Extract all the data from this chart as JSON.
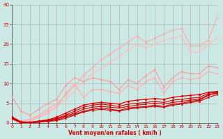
{
  "background_color": "#cce8e4",
  "grid_color": "#aaaaaa",
  "xlabel": "Vent moyen/en rafales ( km/h )",
  "xlabel_color": "#cc0000",
  "tick_color": "#cc0000",
  "xlim": [
    0,
    23
  ],
  "ylim": [
    0,
    30
  ],
  "yticks": [
    0,
    5,
    10,
    15,
    20,
    25,
    30
  ],
  "xticks": [
    0,
    1,
    2,
    3,
    4,
    5,
    6,
    7,
    8,
    9,
    10,
    11,
    12,
    13,
    14,
    15,
    16,
    17,
    18,
    19,
    20,
    21,
    22,
    23
  ],
  "series": [
    {
      "x": [
        0,
        1,
        2,
        3,
        4,
        5,
        6,
        7,
        8,
        9,
        10,
        11,
        12,
        13,
        14,
        15,
        16,
        17,
        18,
        19,
        20,
        21,
        22,
        23
      ],
      "y": [
        1.5,
        0.5,
        1.0,
        2.0,
        3.5,
        5.0,
        7.0,
        9.5,
        12.0,
        14.0,
        16.0,
        17.5,
        19.0,
        20.5,
        22.0,
        20.5,
        21.5,
        22.5,
        23.5,
        24.0,
        19.5,
        19.5,
        21.0,
        27.0
      ],
      "color": "#ffaaaa",
      "linewidth": 0.8,
      "marker": "D",
      "markersize": 1.5
    },
    {
      "x": [
        0,
        1,
        2,
        3,
        4,
        5,
        6,
        7,
        8,
        9,
        10,
        11,
        12,
        13,
        14,
        15,
        16,
        17,
        18,
        19,
        20,
        21,
        22,
        23
      ],
      "y": [
        1.2,
        0.3,
        0.8,
        1.8,
        3.0,
        4.5,
        6.0,
        8.0,
        10.5,
        12.5,
        14.0,
        15.5,
        17.0,
        18.5,
        20.0,
        19.0,
        20.0,
        21.0,
        21.5,
        22.0,
        18.0,
        18.0,
        20.0,
        21.5
      ],
      "color": "#ffbbbb",
      "linewidth": 0.8,
      "marker": "D",
      "markersize": 1.5
    },
    {
      "x": [
        0,
        1,
        2,
        3,
        4,
        5,
        6,
        7,
        8,
        9,
        10,
        11,
        12,
        13,
        14,
        15,
        16,
        17,
        18,
        19,
        20,
        21,
        22,
        23
      ],
      "y": [
        6.5,
        3.0,
        2.0,
        3.5,
        5.0,
        6.0,
        9.5,
        11.5,
        10.5,
        11.5,
        11.0,
        10.5,
        8.5,
        11.0,
        10.0,
        12.0,
        13.5,
        9.0,
        11.5,
        13.0,
        12.5,
        12.5,
        14.5,
        14.0
      ],
      "color": "#ff9999",
      "linewidth": 0.8,
      "marker": "D",
      "markersize": 1.5
    },
    {
      "x": [
        0,
        1,
        2,
        3,
        4,
        5,
        6,
        7,
        8,
        9,
        10,
        11,
        12,
        13,
        14,
        15,
        16,
        17,
        18,
        19,
        20,
        21,
        22,
        23
      ],
      "y": [
        1.5,
        0.5,
        0.5,
        1.5,
        2.5,
        4.0,
        7.5,
        10.0,
        6.5,
        8.5,
        8.5,
        8.0,
        7.5,
        9.5,
        8.5,
        10.5,
        11.5,
        7.5,
        10.5,
        11.5,
        11.0,
        11.5,
        13.0,
        12.5
      ],
      "color": "#ffaaaa",
      "linewidth": 0.8,
      "marker": "D",
      "markersize": 1.5
    },
    {
      "x": [
        0,
        1,
        2,
        3,
        4,
        5,
        6,
        7,
        8,
        9,
        10,
        11,
        12,
        13,
        14,
        15,
        16,
        17,
        18,
        19,
        20,
        21,
        22,
        23
      ],
      "y": [
        1.5,
        0.2,
        0.1,
        0.3,
        0.5,
        0.8,
        1.5,
        2.2,
        3.0,
        3.5,
        3.8,
        3.5,
        3.2,
        3.8,
        4.0,
        4.2,
        4.5,
        4.2,
        4.8,
        5.0,
        5.5,
        5.8,
        7.0,
        7.8
      ],
      "color": "#cc0000",
      "linewidth": 0.8,
      "marker": "D",
      "markersize": 1.5
    },
    {
      "x": [
        0,
        1,
        2,
        3,
        4,
        5,
        6,
        7,
        8,
        9,
        10,
        11,
        12,
        13,
        14,
        15,
        16,
        17,
        18,
        19,
        20,
        21,
        22,
        23
      ],
      "y": [
        1.2,
        0.1,
        0.0,
        0.2,
        0.4,
        0.6,
        1.2,
        2.0,
        2.8,
        3.2,
        3.5,
        3.2,
        3.0,
        3.5,
        3.8,
        4.0,
        4.2,
        4.0,
        4.5,
        4.8,
        5.2,
        5.5,
        6.5,
        7.2
      ],
      "color": "#cc0000",
      "linewidth": 0.8,
      "marker": "^",
      "markersize": 1.5
    },
    {
      "x": [
        0,
        1,
        2,
        3,
        4,
        5,
        6,
        7,
        8,
        9,
        10,
        11,
        12,
        13,
        14,
        15,
        16,
        17,
        18,
        19,
        20,
        21,
        22,
        23
      ],
      "y": [
        1.0,
        0.0,
        0.1,
        0.3,
        0.6,
        1.0,
        1.8,
        2.5,
        3.5,
        4.0,
        4.2,
        4.0,
        3.8,
        4.2,
        4.5,
        4.8,
        5.0,
        4.8,
        5.2,
        5.5,
        5.8,
        6.0,
        7.2,
        7.5
      ],
      "color": "#cc0000",
      "linewidth": 0.8,
      "marker": "s",
      "markersize": 1.5
    },
    {
      "x": [
        0,
        1,
        2,
        3,
        4,
        5,
        6,
        7,
        8,
        9,
        10,
        11,
        12,
        13,
        14,
        15,
        16,
        17,
        18,
        19,
        20,
        21,
        22,
        23
      ],
      "y": [
        1.3,
        0.2,
        0.2,
        0.4,
        0.7,
        1.2,
        2.0,
        3.0,
        4.0,
        4.5,
        4.8,
        4.5,
        4.2,
        4.8,
        5.0,
        5.2,
        5.5,
        5.2,
        5.8,
        6.0,
        6.3,
        6.5,
        7.5,
        7.8
      ],
      "color": "#cc0000",
      "linewidth": 0.8,
      "marker": "o",
      "markersize": 1.5
    },
    {
      "x": [
        0,
        1,
        2,
        3,
        4,
        5,
        6,
        7,
        8,
        9,
        10,
        11,
        12,
        13,
        14,
        15,
        16,
        17,
        18,
        19,
        20,
        21,
        22,
        23
      ],
      "y": [
        1.5,
        0.3,
        0.2,
        0.5,
        0.8,
        1.5,
        2.5,
        3.5,
        4.5,
        5.0,
        5.2,
        5.0,
        4.8,
        5.5,
        5.8,
        6.0,
        6.2,
        6.0,
        6.5,
        6.8,
        7.0,
        7.2,
        7.8,
        8.0
      ],
      "color": "#dd0000",
      "linewidth": 0.9,
      "marker": "D",
      "markersize": 1.8
    }
  ]
}
